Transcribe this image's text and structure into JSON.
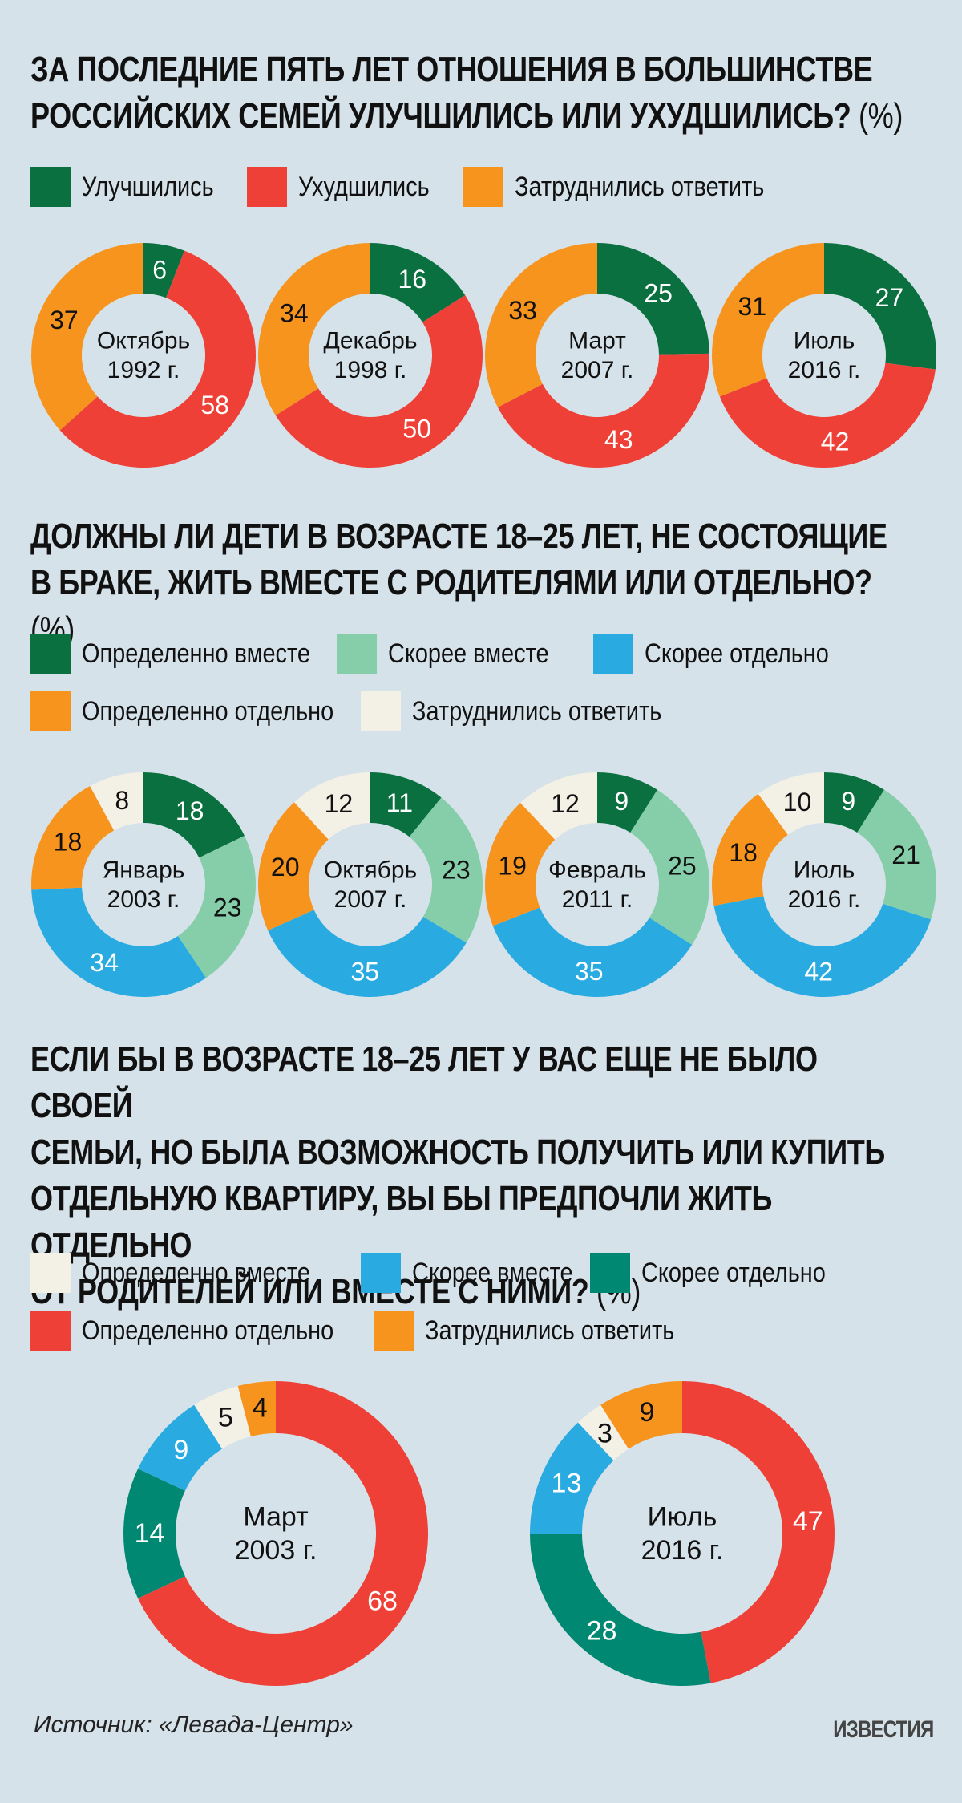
{
  "colors": {
    "improved": "#0a7040",
    "worsened": "#ee4036",
    "hard_to_say": "#f7941e",
    "definitely_together": "#0a7040",
    "rather_together": "#86ceaa",
    "rather_separately": "#29abe2",
    "definitely_separately": "#f7941e",
    "q2_hard_to_say": "#f3f0e6",
    "q3_definitely_together": "#f3f0e6",
    "q3_rather_together": "#29abe2",
    "q3_rather_separately": "#008872",
    "q3_definitely_separately": "#ee4036",
    "q3_hard_to_say": "#f7941e"
  },
  "q1": {
    "title_line1": "ЗА ПОСЛЕДНИЕ ПЯТЬ ЛЕТ ОТНОШЕНИЯ В БОЛЬШИНСТВЕ",
    "title_line2": "РОССИЙСКИХ СЕМЕЙ УЛУЧШИЛИСЬ ИЛИ УХУДШИЛИСЬ?",
    "unit": "(%)",
    "legend": [
      "Улучшились",
      "Ухудшились",
      "Затруднились ответить"
    ]
  },
  "q2": {
    "title_line1": "ДОЛЖНЫ ЛИ ДЕТИ В ВОЗРАСТЕ 18–25 ЛЕТ, НЕ СОСТОЯЩИЕ",
    "title_line2": "В БРАКЕ, ЖИТЬ ВМЕСТЕ С РОДИТЕЛЯМИ ИЛИ ОТДЕЛЬНО?",
    "unit": "(%)",
    "legend": [
      "Определенно вместе",
      "Скорее вместе",
      "Скорее отдельно",
      "Определенно отдельно",
      "Затруднились ответить"
    ]
  },
  "q3": {
    "title_line1": "ЕСЛИ БЫ В ВОЗРАСТЕ 18–25 ЛЕТ У ВАС ЕЩЕ НЕ БЫЛО СВОЕЙ",
    "title_line2": "СЕМЬИ, НО БЫЛА ВОЗМОЖНОСТЬ ПОЛУЧИТЬ ИЛИ КУПИТЬ",
    "title_line3": "ОТДЕЛЬНУЮ КВАРТИРУ, ВЫ БЫ ПРЕДПОЧЛИ ЖИТЬ ОТДЕЛЬНО",
    "title_line4": "ОТ РОДИТЕЛЕЙ ИЛИ ВМЕСТЕ С НИМИ?",
    "unit": "(%)",
    "legend": [
      "Определенно вместе",
      "Скорее вместе",
      "Скорее отдельно",
      "Определенно отдельно",
      "Затруднились ответить"
    ]
  },
  "footer": {
    "source": "Источник: «Левада-Центр»",
    "brand": "ИЗВЕСТИЯ"
  },
  "chart_data": [
    {
      "type": "pie",
      "group": "q1",
      "title": "ЗА ПОСЛЕДНИЕ ПЯТЬ ЛЕТ ОТНОШЕНИЯ В БОЛЬШИНСТВЕ РОССИЙСКИХ СЕМЕЙ УЛУЧШИЛИСЬ ИЛИ УХУДШИЛИСЬ? (%)",
      "categories": [
        "Улучшились",
        "Ухудшились",
        "Затруднились ответить"
      ],
      "series": [
        {
          "name": "Октябрь 1992 г.",
          "values": [
            6,
            58,
            37
          ]
        },
        {
          "name": "Декабрь 1998 г.",
          "values": [
            16,
            50,
            34
          ]
        },
        {
          "name": "Март 2007 г.",
          "values": [
            25,
            43,
            33
          ]
        },
        {
          "name": "Июль 2016 г.",
          "values": [
            27,
            42,
            31
          ]
        }
      ]
    },
    {
      "type": "pie",
      "group": "q2",
      "title": "ДОЛЖНЫ ЛИ ДЕТИ В ВОЗРАСТЕ 18–25 ЛЕТ, НЕ СОСТОЯЩИЕ В БРАКЕ, ЖИТЬ ВМЕСТЕ С РОДИТЕЛЯМИ ИЛИ ОТДЕЛЬНО? (%)",
      "categories": [
        "Определенно вместе",
        "Скорее вместе",
        "Скорее отдельно",
        "Определенно отдельно",
        "Затруднились ответить"
      ],
      "series": [
        {
          "name": "Январь 2003 г.",
          "values": [
            18,
            23,
            34,
            18,
            8
          ]
        },
        {
          "name": "Октябрь 2007 г.",
          "values": [
            11,
            23,
            35,
            20,
            12
          ]
        },
        {
          "name": "Февраль 2011 г.",
          "values": [
            9,
            25,
            35,
            19,
            12
          ]
        },
        {
          "name": "Июль 2016 г.",
          "values": [
            9,
            21,
            42,
            18,
            10
          ]
        }
      ]
    },
    {
      "type": "pie",
      "group": "q3",
      "title": "ЕСЛИ БЫ В ВОЗРАСТЕ 18–25 ЛЕТ У ВАС ЕЩЕ НЕ БЫЛО СВОЕЙ СЕМЬИ, НО БЫЛА ВОЗМОЖНОСТЬ ПОЛУЧИТЬ ИЛИ КУПИТЬ ОТДЕЛЬНУЮ КВАРТИРУ, ВЫ БЫ ПРЕДПОЧЛИ ЖИТЬ ОТДЕЛЬНО ОТ РОДИТЕЛЕЙ ИЛИ ВМЕСТЕ С НИМИ? (%)",
      "categories": [
        "Определенно отдельно",
        "Скорее отдельно",
        "Скорее вместе",
        "Определенно вместе",
        "Затруднились ответить"
      ],
      "series": [
        {
          "name": "Март 2003 г.",
          "values": [
            68,
            14,
            9,
            5,
            4
          ]
        },
        {
          "name": "Июль 2016 г.",
          "values": [
            47,
            28,
            13,
            3,
            9
          ]
        }
      ]
    }
  ]
}
